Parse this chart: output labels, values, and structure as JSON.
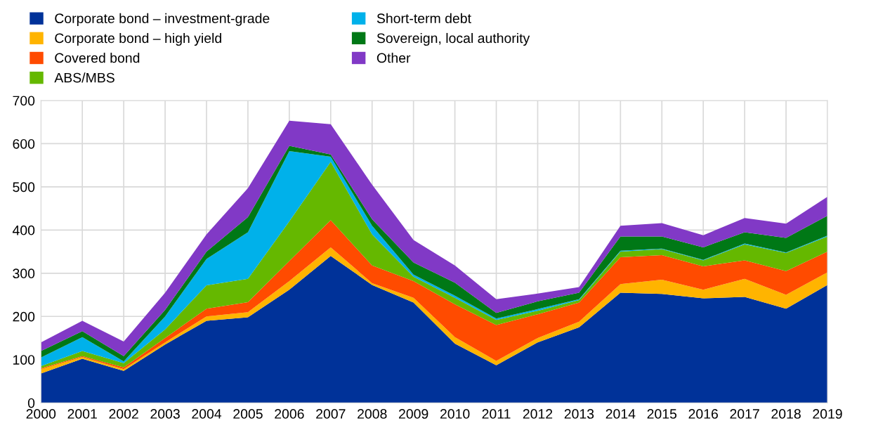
{
  "chart_data": {
    "type": "area",
    "stacked": true,
    "legend": "top left",
    "grid": true,
    "x": [
      2000,
      2001,
      2002,
      2003,
      2004,
      2005,
      2006,
      2007,
      2008,
      2009,
      2010,
      2011,
      2012,
      2013,
      2014,
      2015,
      2016,
      2017,
      2018,
      2019
    ],
    "xlim": [
      2000,
      2019
    ],
    "xticks": [
      2000,
      2001,
      2002,
      2003,
      2004,
      2005,
      2006,
      2007,
      2008,
      2009,
      2010,
      2011,
      2012,
      2013,
      2014,
      2015,
      2016,
      2017,
      2018,
      2019
    ],
    "ylim": [
      0,
      700
    ],
    "yticks": [
      0,
      100,
      200,
      300,
      400,
      500,
      600,
      700
    ],
    "series": [
      {
        "name": "Corporate bond – investment-grade",
        "color": "#003299",
        "values": [
          68,
          102,
          74,
          135,
          190,
          198,
          262,
          340,
          273,
          232,
          137,
          87,
          140,
          175,
          255,
          252,
          242,
          245,
          218,
          273
        ]
      },
      {
        "name": "Corporate bond – high yield",
        "color": "#ffb400",
        "values": [
          10,
          4,
          4,
          5,
          10,
          12,
          20,
          20,
          4,
          11,
          15,
          10,
          10,
          13,
          20,
          33,
          20,
          42,
          32,
          29
        ]
      },
      {
        "name": "Covered bond",
        "color": "#ff4b00",
        "values": [
          2,
          2,
          4,
          10,
          18,
          23,
          46,
          63,
          41,
          39,
          76,
          83,
          55,
          44,
          62,
          57,
          54,
          43,
          55,
          48
        ]
      },
      {
        "name": "ABS/MBS",
        "color": "#65b800",
        "values": [
          5,
          12,
          10,
          20,
          54,
          54,
          92,
          135,
          72,
          10,
          15,
          12,
          8,
          6,
          13,
          14,
          14,
          37,
          42,
          35
        ]
      },
      {
        "name": "Short-term debt",
        "color": "#00b1ea",
        "values": [
          20,
          32,
          4,
          30,
          61,
          108,
          163,
          12,
          20,
          5,
          5,
          3,
          4,
          2,
          2,
          1,
          1,
          2,
          1,
          2
        ]
      },
      {
        "name": "Sovereign, local authority",
        "color": "#007816",
        "values": [
          15,
          14,
          12,
          15,
          17,
          35,
          12,
          5,
          15,
          28,
          30,
          13,
          18,
          15,
          33,
          28,
          29,
          26,
          34,
          46
        ]
      },
      {
        "name": "Other",
        "color": "#8139c6",
        "values": [
          20,
          24,
          34,
          40,
          40,
          67,
          58,
          70,
          80,
          52,
          40,
          32,
          18,
          13,
          25,
          31,
          28,
          33,
          33,
          44
        ]
      }
    ]
  }
}
